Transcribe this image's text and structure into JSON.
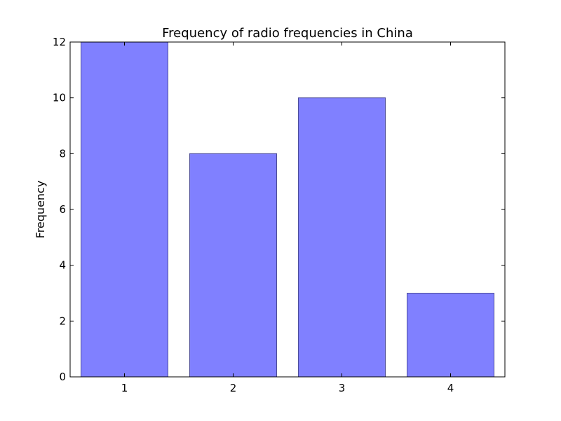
{
  "chart_data": {
    "type": "bar",
    "title": "Frequency of radio frequencies in China",
    "xlabel": "",
    "ylabel": "Frequency",
    "categories": [
      "1",
      "2",
      "3",
      "4"
    ],
    "values": [
      12,
      8,
      10,
      3
    ],
    "ylim": [
      0,
      12
    ],
    "yticks": [
      "0",
      "2",
      "4",
      "6",
      "8",
      "10",
      "12"
    ],
    "grid": false,
    "bar_color": "#8080ff",
    "bar_edge_color": "#4d4d99"
  }
}
